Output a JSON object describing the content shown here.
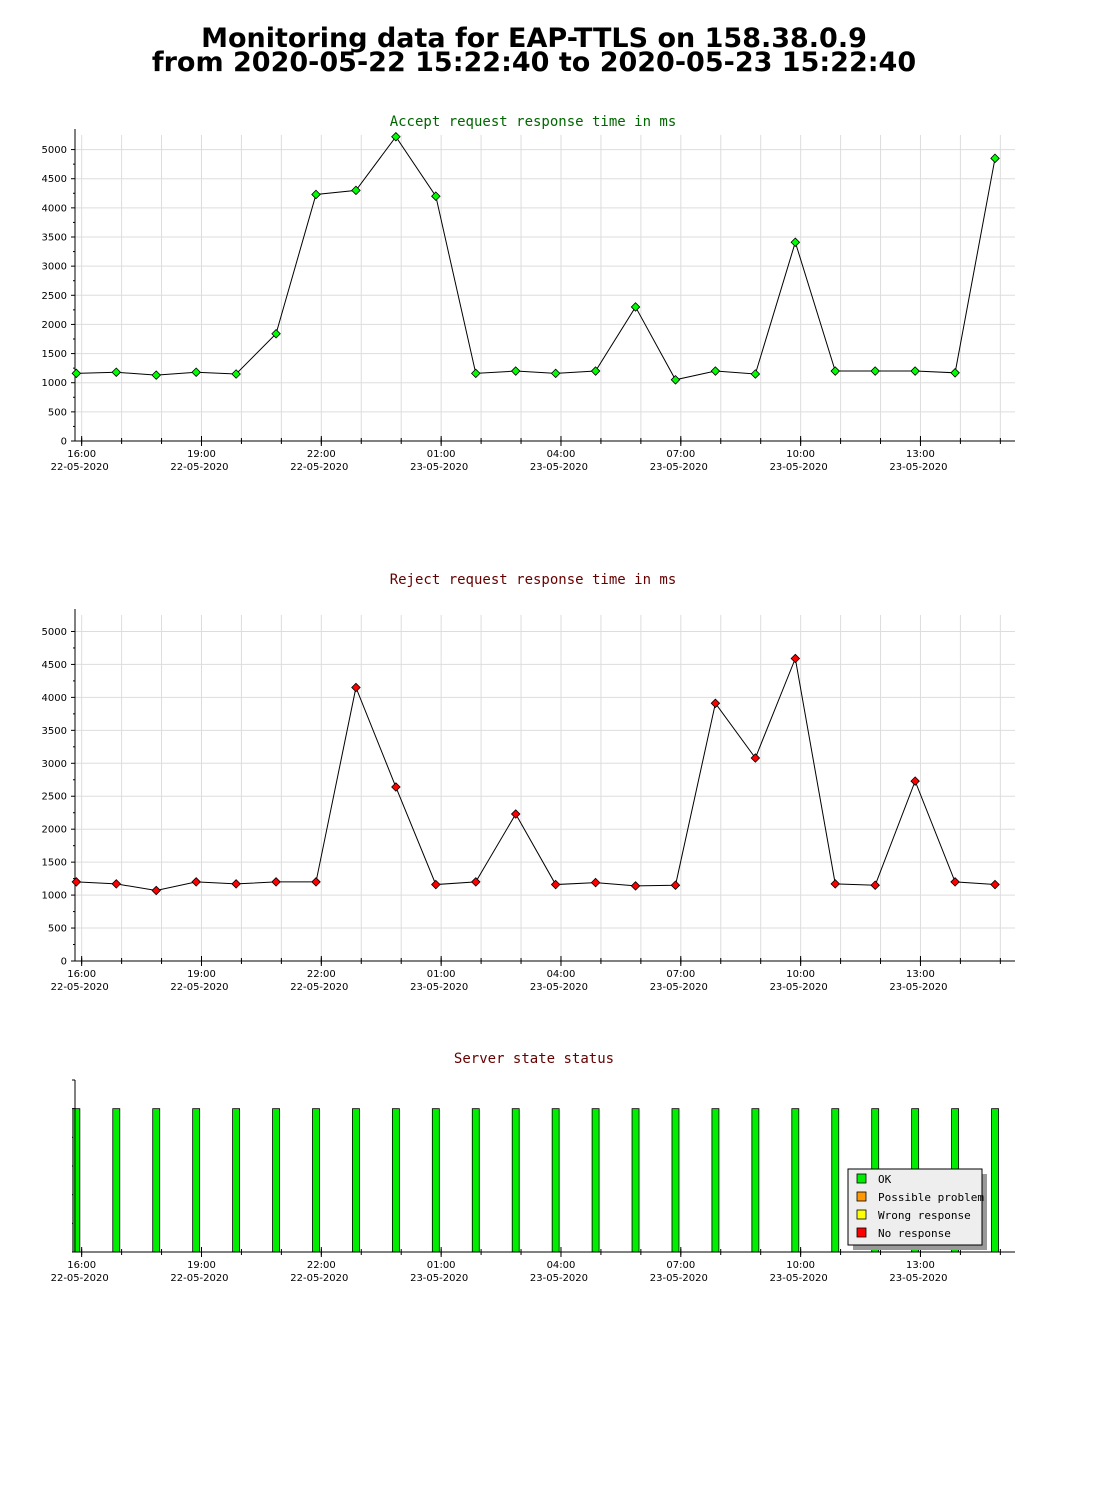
{
  "page": {
    "title_line_1": "Monitoring data for EAP-TTLS on 158.38.0.9",
    "title_line_2": "from 2020-05-22 15:22:40 to 2020-05-23 15:22:40"
  },
  "colors": {
    "accept_series": "#00ff00",
    "accept_title": "#006600",
    "reject_series": "#ff0000",
    "reject_title": "#660000",
    "status_title": "#660000",
    "ok": "#00ee00",
    "possible_problem": "#ff9900",
    "wrong_response": "#ffff00",
    "no_response": "#ff0000",
    "grid": "#dddddd"
  },
  "x_axis": {
    "tick_labels": [
      {
        "time": "16:00",
        "date": "22-05-2020"
      },
      {
        "time": "19:00",
        "date": "22-05-2020"
      },
      {
        "time": "22:00",
        "date": "22-05-2020"
      },
      {
        "time": "01:00",
        "date": "23-05-2020"
      },
      {
        "time": "04:00",
        "date": "23-05-2020"
      },
      {
        "time": "07:00",
        "date": "23-05-2020"
      },
      {
        "time": "10:00",
        "date": "23-05-2020"
      },
      {
        "time": "13:00",
        "date": "23-05-2020"
      }
    ]
  },
  "chart_data": [
    {
      "id": "accept",
      "type": "line",
      "title": "Accept request response time in ms",
      "xlabel": "",
      "ylabel": "",
      "xlim": [
        "2020-05-22 15:50",
        "2020-05-23 15:22"
      ],
      "ylim": [
        0,
        5250
      ],
      "y_ticks": [
        0,
        500,
        1000,
        1500,
        2000,
        2500,
        3000,
        3500,
        4000,
        4500,
        5000
      ],
      "grid": true,
      "x": [
        "2020-05-22 15:52",
        "2020-05-22 16:52",
        "2020-05-22 17:52",
        "2020-05-22 18:52",
        "2020-05-22 19:52",
        "2020-05-22 20:52",
        "2020-05-22 21:52",
        "2020-05-22 22:52",
        "2020-05-22 23:52",
        "2020-05-23 00:52",
        "2020-05-23 01:52",
        "2020-05-23 02:52",
        "2020-05-23 03:52",
        "2020-05-23 04:52",
        "2020-05-23 05:52",
        "2020-05-23 06:52",
        "2020-05-23 07:52",
        "2020-05-23 08:52",
        "2020-05-23 09:52",
        "2020-05-23 10:52",
        "2020-05-23 11:52",
        "2020-05-23 12:52",
        "2020-05-23 13:52",
        "2020-05-23 14:52"
      ],
      "series": [
        {
          "values": [
            1160,
            1180,
            1130,
            1180,
            1150,
            1840,
            4230,
            4300,
            5220,
            4200,
            1160,
            1200,
            1160,
            1200,
            2300,
            1050,
            1200,
            1150,
            3410,
            1200,
            1200,
            1200,
            1170,
            4850
          ]
        }
      ]
    },
    {
      "id": "reject",
      "type": "line",
      "title": "Reject request response time in ms",
      "xlabel": "",
      "ylabel": "",
      "xlim": [
        "2020-05-22 15:50",
        "2020-05-23 15:22"
      ],
      "ylim": [
        0,
        5250
      ],
      "y_ticks": [
        0,
        500,
        1000,
        1500,
        2000,
        2500,
        3000,
        3500,
        4000,
        4500,
        5000
      ],
      "grid": true,
      "x": [
        "2020-05-22 15:52",
        "2020-05-22 16:52",
        "2020-05-22 17:52",
        "2020-05-22 18:52",
        "2020-05-22 19:52",
        "2020-05-22 20:52",
        "2020-05-22 21:52",
        "2020-05-22 22:52",
        "2020-05-22 23:52",
        "2020-05-23 00:52",
        "2020-05-23 01:52",
        "2020-05-23 02:52",
        "2020-05-23 03:52",
        "2020-05-23 04:52",
        "2020-05-23 05:52",
        "2020-05-23 06:52",
        "2020-05-23 07:52",
        "2020-05-23 08:52",
        "2020-05-23 09:52",
        "2020-05-23 10:52",
        "2020-05-23 11:52",
        "2020-05-23 12:52",
        "2020-05-23 13:52",
        "2020-05-23 14:52"
      ],
      "series": [
        {
          "values": [
            1200,
            1170,
            1070,
            1200,
            1170,
            1200,
            1200,
            4150,
            2640,
            1160,
            1200,
            2230,
            1160,
            1190,
            1140,
            1150,
            3910,
            3080,
            4590,
            1170,
            1150,
            2730,
            1200,
            1160
          ]
        }
      ]
    },
    {
      "id": "status",
      "type": "bar",
      "title": "Server state status",
      "xlabel": "",
      "ylabel": "",
      "xlim": [
        "2020-05-22 15:50",
        "2020-05-23 15:22"
      ],
      "ylim": [
        0,
        1.2
      ],
      "grid": false,
      "legend": {
        "placement": "bottom-right"
      },
      "x": [
        "2020-05-22 15:52",
        "2020-05-22 16:52",
        "2020-05-22 17:52",
        "2020-05-22 18:52",
        "2020-05-22 19:52",
        "2020-05-22 20:52",
        "2020-05-22 21:52",
        "2020-05-22 22:52",
        "2020-05-22 23:52",
        "2020-05-23 00:52",
        "2020-05-23 01:52",
        "2020-05-23 02:52",
        "2020-05-23 03:52",
        "2020-05-23 04:52",
        "2020-05-23 05:52",
        "2020-05-23 06:52",
        "2020-05-23 07:52",
        "2020-05-23 08:52",
        "2020-05-23 09:52",
        "2020-05-23 10:52",
        "2020-05-23 11:52",
        "2020-05-23 12:52",
        "2020-05-23 13:52",
        "2020-05-23 14:52"
      ],
      "series": [
        {
          "name": "OK",
          "values": [
            1,
            1,
            1,
            1,
            1,
            1,
            1,
            1,
            1,
            1,
            1,
            1,
            1,
            1,
            1,
            1,
            1,
            1,
            1,
            1,
            1,
            1,
            1,
            1
          ]
        },
        {
          "name": "Possible problem",
          "values": [
            0,
            0,
            0,
            0,
            0,
            0,
            0,
            0,
            0,
            0,
            0,
            0,
            0,
            0,
            0,
            0,
            0,
            0,
            0,
            0,
            0,
            0,
            0,
            0
          ]
        },
        {
          "name": "Wrong response",
          "values": [
            0,
            0,
            0,
            0,
            0,
            0,
            0,
            0,
            0,
            0,
            0,
            0,
            0,
            0,
            0,
            0,
            0,
            0,
            0,
            0,
            0,
            0,
            0,
            0
          ]
        },
        {
          "name": "No response",
          "values": [
            0,
            0,
            0,
            0,
            0,
            0,
            0,
            0,
            0,
            0,
            0,
            0,
            0,
            0,
            0,
            0,
            0,
            0,
            0,
            0,
            0,
            0,
            0,
            0
          ]
        }
      ]
    }
  ]
}
